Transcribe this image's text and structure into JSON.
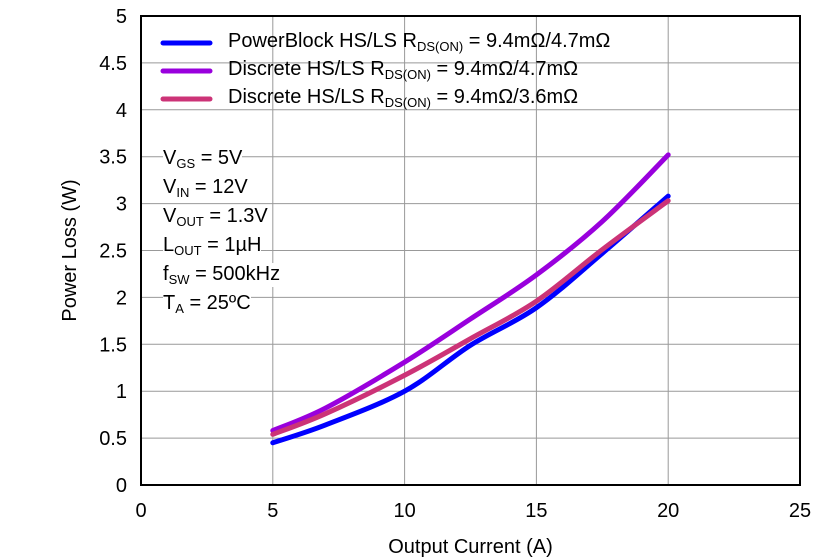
{
  "chart_data": {
    "type": "line",
    "xlabel": "Output Current (A)",
    "ylabel": "Power Loss (W)",
    "xlim": [
      0,
      25
    ],
    "ylim": [
      0,
      5
    ],
    "xticks": [
      "0",
      "5",
      "10",
      "15",
      "20",
      "25"
    ],
    "yticks": [
      "0",
      "0.5",
      "1",
      "1.5",
      "2",
      "2.5",
      "3",
      "3.5",
      "4",
      "4.5",
      "5"
    ],
    "grid": true,
    "legend_position": "top",
    "x": [
      5,
      7,
      10,
      12.5,
      15,
      17.5,
      20
    ],
    "series": [
      {
        "name": "PowerBlock  HS/LS R",
        "sub": "DS(ON)",
        "suffix": " = 9.4mΩ/4.7mΩ",
        "color": "#0000ff",
        "values": [
          0.45,
          0.64,
          1.0,
          1.49,
          1.89,
          2.47,
          3.08
        ]
      },
      {
        "name": "Discrete  HS/LS R",
        "sub": "DS(ON)",
        "suffix": " = 9.4mΩ/4.7mΩ",
        "color": "#9900dd",
        "values": [
          0.58,
          0.82,
          1.31,
          1.77,
          2.24,
          2.81,
          3.52
        ]
      },
      {
        "name": "Discrete  HS/LS R",
        "sub": "DS(ON)",
        "suffix": " = 9.4mΩ/3.6mΩ",
        "color": "#cc3377",
        "values": [
          0.54,
          0.76,
          1.17,
          1.56,
          1.96,
          2.51,
          3.03
        ]
      }
    ],
    "annotations": [
      {
        "main": "V",
        "sub": "GS",
        "rest": " = 5V"
      },
      {
        "main": "V",
        "sub": "IN",
        "rest": " = 12V"
      },
      {
        "main": "V",
        "sub": "OUT",
        "rest": " = 1.3V"
      },
      {
        "main": "L",
        "sub": "OUT",
        "rest": " = 1µH"
      },
      {
        "main": "f",
        "sub": "SW",
        "rest": " = 500kHz"
      },
      {
        "main": "T",
        "sub": "A",
        "rest": " = 25ºC"
      }
    ]
  }
}
